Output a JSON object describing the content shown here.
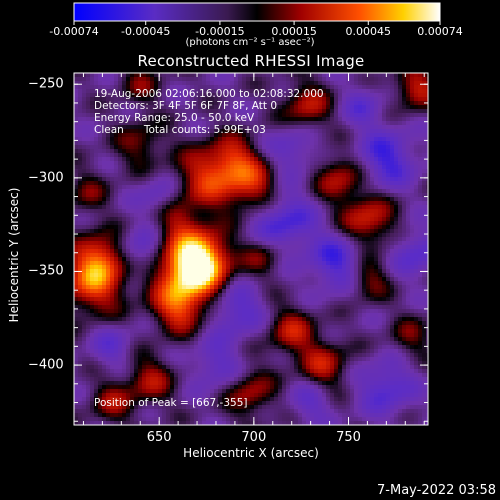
{
  "colorbar": {
    "tick_labels": [
      "-0.00074",
      "-0.00045",
      "-0.00015",
      "0.00015",
      "0.00045",
      "0.00074"
    ],
    "units_label": "(photons cm⁻² s⁻¹ asec⁻²)"
  },
  "chart_data": {
    "type": "heatmap",
    "title": "Reconstructed RHESSI Image",
    "xlabel": "Heliocentric X (arcsec)",
    "ylabel": "Heliocentric Y (arcsec)",
    "xlim": [
      605,
      792
    ],
    "ylim": [
      -432,
      -244
    ],
    "x_ticks": [
      650,
      700,
      750
    ],
    "y_ticks": [
      -250,
      -300,
      -350,
      -400
    ],
    "colorbar_range": [
      -0.00074,
      0.00074
    ],
    "colormap": "blue-purple-black-red-yellow-white",
    "peak": [
      667,
      -355
    ],
    "blobs": [
      {
        "x": 666,
        "y": -350,
        "v": 1.0,
        "r": 13
      },
      {
        "x": 672,
        "y": -343,
        "v": 0.7,
        "r": 10
      },
      {
        "x": 660,
        "y": -370,
        "v": 0.55,
        "r": 9
      },
      {
        "x": 615,
        "y": -355,
        "v": 0.75,
        "r": 12
      },
      {
        "x": 620,
        "y": -342,
        "v": 0.5,
        "r": 9
      },
      {
        "x": 676,
        "y": -300,
        "v": 0.6,
        "r": 12
      },
      {
        "x": 700,
        "y": -305,
        "v": 0.55,
        "r": 10
      },
      {
        "x": 690,
        "y": -290,
        "v": 0.45,
        "r": 9
      },
      {
        "x": 760,
        "y": -323,
        "v": 0.6,
        "r": 10
      },
      {
        "x": 745,
        "y": -300,
        "v": 0.5,
        "r": 9
      },
      {
        "x": 786,
        "y": -252,
        "v": 0.55,
        "r": 8
      },
      {
        "x": 728,
        "y": -262,
        "v": 0.5,
        "r": 9
      },
      {
        "x": 760,
        "y": -354,
        "v": 0.45,
        "r": 8
      },
      {
        "x": 720,
        "y": -382,
        "v": 0.5,
        "r": 9
      },
      {
        "x": 737,
        "y": -400,
        "v": 0.5,
        "r": 9
      },
      {
        "x": 645,
        "y": -408,
        "v": 0.45,
        "r": 9
      },
      {
        "x": 625,
        "y": -420,
        "v": 0.4,
        "r": 8
      },
      {
        "x": 698,
        "y": -415,
        "v": 0.45,
        "r": 9
      },
      {
        "x": 705,
        "y": -342,
        "v": 0.35,
        "r": 8
      },
      {
        "x": 640,
        "y": -282,
        "v": 0.35,
        "r": 9
      },
      {
        "x": 612,
        "y": -308,
        "v": 0.3,
        "r": 8
      },
      {
        "x": 660,
        "y": -322,
        "v": 0.35,
        "r": 8
      },
      {
        "x": 783,
        "y": -385,
        "v": 0.3,
        "r": 8
      },
      {
        "x": 640,
        "y": -250,
        "v": 0.3,
        "r": 8
      },
      {
        "x": 715,
        "y": -323,
        "v": -0.5,
        "r": 12
      },
      {
        "x": 745,
        "y": -345,
        "v": -0.5,
        "r": 11
      },
      {
        "x": 770,
        "y": -290,
        "v": -0.5,
        "r": 11
      },
      {
        "x": 690,
        "y": -370,
        "v": -0.45,
        "r": 10
      },
      {
        "x": 640,
        "y": -340,
        "v": -0.4,
        "r": 9
      },
      {
        "x": 770,
        "y": -412,
        "v": -0.45,
        "r": 10
      },
      {
        "x": 680,
        "y": -400,
        "v": -0.35,
        "r": 9
      },
      {
        "x": 720,
        "y": -285,
        "v": -0.35,
        "r": 9
      },
      {
        "x": 650,
        "y": -310,
        "v": -0.3,
        "r": 8
      },
      {
        "x": 786,
        "y": -340,
        "v": -0.4,
        "r": 9
      },
      {
        "x": 730,
        "y": -420,
        "v": -0.3,
        "r": 8
      },
      {
        "x": 625,
        "y": -390,
        "v": -0.3,
        "r": 8
      },
      {
        "x": 757,
        "y": -262,
        "v": -0.3,
        "r": 8
      }
    ]
  },
  "info": {
    "lines": [
      "19-Aug-2006 02:06:16.000 to 02:08:32.000",
      "Detectors: 3F 4F 5F 6F 7F 8F, Att 0",
      "Energy Range: 25.0 - 50.0 keV",
      "Clean      Total counts: 5.99E+03"
    ],
    "peak_label": "Position of Peak = [667,-355]"
  },
  "timestamp": "7-May-2022 03:58"
}
